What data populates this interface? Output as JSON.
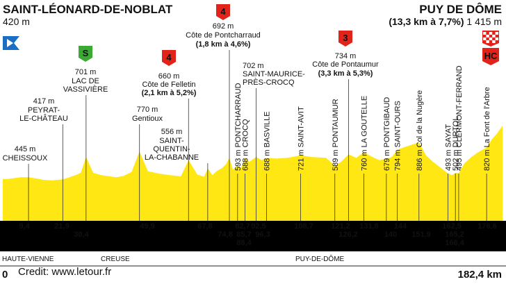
{
  "chart_data": {
    "type": "area",
    "title": "",
    "start": {
      "name": "SAINT-LÉONARD-DE-NOBLAT",
      "altitude": "420 m"
    },
    "finish": {
      "name": "PUY DE DÔME",
      "climb": "(13,3 km à 7,7%)",
      "altitude": "1 415 m"
    },
    "distance_start": "0",
    "distance_total": "182,4 km",
    "xlim": [
      0,
      182.4
    ],
    "profile": [
      [
        0,
        420
      ],
      [
        2,
        423
      ],
      [
        4,
        432
      ],
      [
        6.5,
        444
      ],
      [
        9.4,
        445
      ],
      [
        12,
        430
      ],
      [
        15,
        410
      ],
      [
        18,
        405
      ],
      [
        21.9,
        417
      ],
      [
        24,
        440
      ],
      [
        26.5,
        470
      ],
      [
        28.5,
        500
      ],
      [
        30.4,
        701
      ],
      [
        33,
        500
      ],
      [
        36,
        470
      ],
      [
        39,
        455
      ],
      [
        41.5,
        445
      ],
      [
        44,
        460
      ],
      [
        47,
        510
      ],
      [
        49.9,
        770
      ],
      [
        53,
        520
      ],
      [
        57,
        490
      ],
      [
        61,
        470
      ],
      [
        65,
        455
      ],
      [
        67.8,
        660
      ],
      [
        71,
        480
      ],
      [
        73.5,
        450
      ],
      [
        74.8,
        556
      ],
      [
        76.5,
        470
      ],
      [
        78,
        520
      ],
      [
        80,
        560
      ],
      [
        81.5,
        610
      ],
      [
        82.7,
        692
      ],
      [
        84,
        540
      ],
      [
        85.7,
        593
      ],
      [
        87,
        560
      ],
      [
        88.4,
        688
      ],
      [
        90,
        640
      ],
      [
        92.5,
        702
      ],
      [
        94.5,
        660
      ],
      [
        96.3,
        688
      ],
      [
        100,
        680
      ],
      [
        104,
        690
      ],
      [
        108.7,
        721
      ],
      [
        113,
        700
      ],
      [
        118,
        690
      ],
      [
        121.2,
        589
      ],
      [
        123.5,
        640
      ],
      [
        126.2,
        734
      ],
      [
        129,
        690
      ],
      [
        131.8,
        760
      ],
      [
        135,
        700
      ],
      [
        137.5,
        660
      ],
      [
        140,
        679
      ],
      [
        142,
        700
      ],
      [
        144,
        794
      ],
      [
        147,
        830
      ],
      [
        151.9,
        886
      ],
      [
        154.5,
        720
      ],
      [
        157,
        640
      ],
      [
        160,
        560
      ],
      [
        162.5,
        493
      ],
      [
        164,
        470
      ],
      [
        165.2,
        502
      ],
      [
        166.4,
        495
      ],
      [
        168.5,
        620
      ],
      [
        171,
        700
      ],
      [
        173.5,
        760
      ],
      [
        176.6,
        820
      ],
      [
        178.5,
        980
      ],
      [
        180.5,
        1180
      ],
      [
        182.4,
        1415
      ]
    ],
    "points": [
      {
        "km": 9.4,
        "km_label": "9,4",
        "alt": "445 m",
        "name": "CHEISSOUX"
      },
      {
        "km": 21.9,
        "km_label": "21,9",
        "alt": "417 m",
        "name": "PEYRAT-\nLE-CHÂTEAU"
      },
      {
        "km": 30.4,
        "km_label": "30,4",
        "alt": "701 m",
        "name": "LAC DE\nVASSIVIÈRE",
        "marker": "sprint"
      },
      {
        "km": 49.9,
        "km_label": "49,9",
        "alt": "770 m",
        "name": "Gentioux"
      },
      {
        "km": 67.8,
        "km_label": "67,8",
        "alt": "660 m",
        "name": "Côte de Felletin",
        "climb": "(2,1 km à 5,2%)",
        "marker": "cat4"
      },
      {
        "km": 74.8,
        "km_label": "74,8",
        "alt": "556 m",
        "name": "SAINT-\nQUENTIN-\nLA-CHABANNE"
      },
      {
        "km": 82.7,
        "km_label": "82,7",
        "alt": "692 m",
        "name": "Côte de Pontcharraud",
        "climb": "(1,8 km à 4,6%)",
        "marker": "cat4"
      },
      {
        "km": 85.7,
        "km_label": "85,7",
        "vertical": "593 m PONTCHARRAUD"
      },
      {
        "km": 88.4,
        "km_label": "88,4",
        "vertical": "688 m CROCQ"
      },
      {
        "km": 92.5,
        "km_label": "92,5",
        "alt": "702 m",
        "name": "SAINT-MAURICE-\nPRÈS-CROCQ"
      },
      {
        "km": 96.3,
        "km_label": "96,3",
        "vertical": "688 m BASVILLE"
      },
      {
        "km": 108.7,
        "km_label": "108,7",
        "vertical": "721 m SAINT-AVIT"
      },
      {
        "km": 121.2,
        "km_label": "121,2",
        "vertical": "589 m PONTAUMUR"
      },
      {
        "km": 126.2,
        "km_label": "126,2",
        "alt": "734 m",
        "name": "Côte de Pontaumur",
        "climb": "(3,3 km à 5,3%)",
        "marker": "cat3"
      },
      {
        "km": 131.8,
        "km_label": "131,8",
        "vertical": "760 m LA GOUTELLE"
      },
      {
        "km": 140,
        "km_label": "140",
        "vertical": "679 m PONTGIBAUD"
      },
      {
        "km": 144,
        "km_label": "144",
        "vertical": "794 m SAINT-OURS"
      },
      {
        "km": 151.9,
        "km_label": "151,9",
        "vertical": "886 m Col de la Nugère"
      },
      {
        "km": 162.5,
        "km_label": "162,5",
        "vertical": "493 m SAYAT"
      },
      {
        "km": 165.2,
        "km_label": "165,2",
        "vertical": "502 m DURTOL"
      },
      {
        "km": 166.4,
        "km_label": "166,4",
        "vertical": "495 m CLERMONT-FERRAND"
      },
      {
        "km": 176.6,
        "km_label": "176,6",
        "vertical": "820 m La Font de l'Arbre"
      }
    ],
    "markers": {
      "cat4": "4",
      "cat3": "3",
      "sprint": "S",
      "hc": "HC"
    },
    "departments": [
      "HAUTE-VIENNE",
      "CREUSE",
      "PUY-DE-DÔME"
    ],
    "colors": {
      "profile": "#ffe714",
      "band": "#000000",
      "km_label": "#ffe714",
      "cat_marker": "#e2231a",
      "sprint_marker": "#3aaa35",
      "start_flag": "#1a6fc4"
    }
  },
  "credit": "Credit: www.letour.fr"
}
